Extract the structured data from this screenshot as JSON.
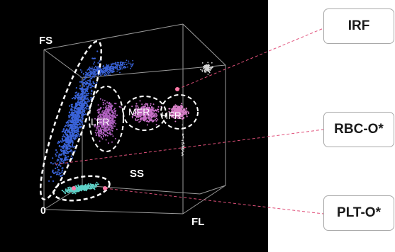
{
  "chart_data": {
    "type": "scatter",
    "title": "",
    "plot_background": "#000000",
    "axes": {
      "y": "FS",
      "x_depth": "SS",
      "x": "FL",
      "origin": "0"
    },
    "clusters": [
      {
        "name": "RBC-O",
        "color": "#3a63d8"
      },
      {
        "name": "LFR",
        "color": "#b060c0"
      },
      {
        "name": "MFR",
        "color": "#c870c8"
      },
      {
        "name": "HFR",
        "color": "#d880c8"
      },
      {
        "name": "PLT-O",
        "color": "#5ed2c8"
      }
    ],
    "region_labels": [
      "LFR",
      "MFR",
      "HFR"
    ],
    "callouts": [
      "IRF",
      "RBC-O*",
      "PLT-O*"
    ],
    "leader_color": "#e0507a",
    "marker_color": "#ff7aa8"
  }
}
